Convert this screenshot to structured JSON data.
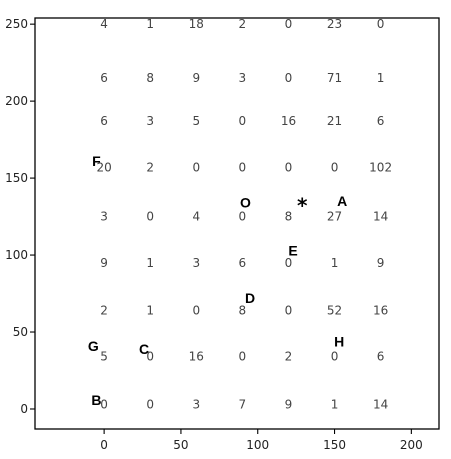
{
  "chart_data": {
    "type": "table",
    "title": "",
    "xlabel": "",
    "ylabel": "",
    "xlim": [
      -45,
      218
    ],
    "ylim": [
      -13,
      254
    ],
    "grid": false,
    "x_ticks": [
      {
        "value": 0,
        "label": "0"
      },
      {
        "value": 50,
        "label": "50"
      },
      {
        "value": 100,
        "label": "100"
      },
      {
        "value": 150,
        "label": "150"
      },
      {
        "value": 200,
        "label": "200"
      }
    ],
    "y_ticks": [
      {
        "value": 0,
        "label": "0"
      },
      {
        "value": 50,
        "label": "50"
      },
      {
        "value": 100,
        "label": "100"
      },
      {
        "value": 150,
        "label": "150"
      },
      {
        "value": 200,
        "label": "200"
      },
      {
        "value": 250,
        "label": "250"
      }
    ],
    "columns_x": [
      0,
      30,
      60,
      90,
      120,
      150,
      180
    ],
    "rows": [
      {
        "y": 250,
        "values": [
          "4",
          "1",
          "18",
          "2",
          "0",
          "23",
          "0"
        ]
      },
      {
        "y": 215,
        "values": [
          "6",
          "8",
          "9",
          "3",
          "0",
          "71",
          "1"
        ]
      },
      {
        "y": 187,
        "values": [
          "6",
          "3",
          "5",
          "0",
          "16",
          "21",
          "6"
        ]
      },
      {
        "y": 157,
        "values": [
          "20",
          "2",
          "0",
          "0",
          "0",
          "0",
          "102"
        ]
      },
      {
        "y": 125,
        "values": [
          "3",
          "0",
          "4",
          "0",
          "8",
          "27",
          "14"
        ]
      },
      {
        "y": 95,
        "values": [
          "9",
          "1",
          "3",
          "6",
          "0",
          "1",
          "9"
        ]
      },
      {
        "y": 64,
        "values": [
          "2",
          "1",
          "0",
          "8",
          "0",
          "52",
          "16"
        ]
      },
      {
        "y": 34,
        "values": [
          "5",
          "0",
          "16",
          "0",
          "2",
          "0",
          "6"
        ]
      },
      {
        "y": 3,
        "values": [
          "0",
          "0",
          "3",
          "7",
          "9",
          "1",
          "14"
        ]
      }
    ],
    "annotations": [
      {
        "label": "F",
        "x": -5,
        "y": 161
      },
      {
        "label": "O",
        "x": 92,
        "y": 134
      },
      {
        "label": "*",
        "x": 129,
        "y": 134
      },
      {
        "label": "A",
        "x": 155,
        "y": 135
      },
      {
        "label": "E",
        "x": 123,
        "y": 103
      },
      {
        "label": "D",
        "x": 95,
        "y": 72
      },
      {
        "label": "G",
        "x": -7,
        "y": 41
      },
      {
        "label": "C",
        "x": 26,
        "y": 39
      },
      {
        "label": "H",
        "x": 153,
        "y": 44
      },
      {
        "label": "B",
        "x": -5,
        "y": 6
      }
    ]
  }
}
